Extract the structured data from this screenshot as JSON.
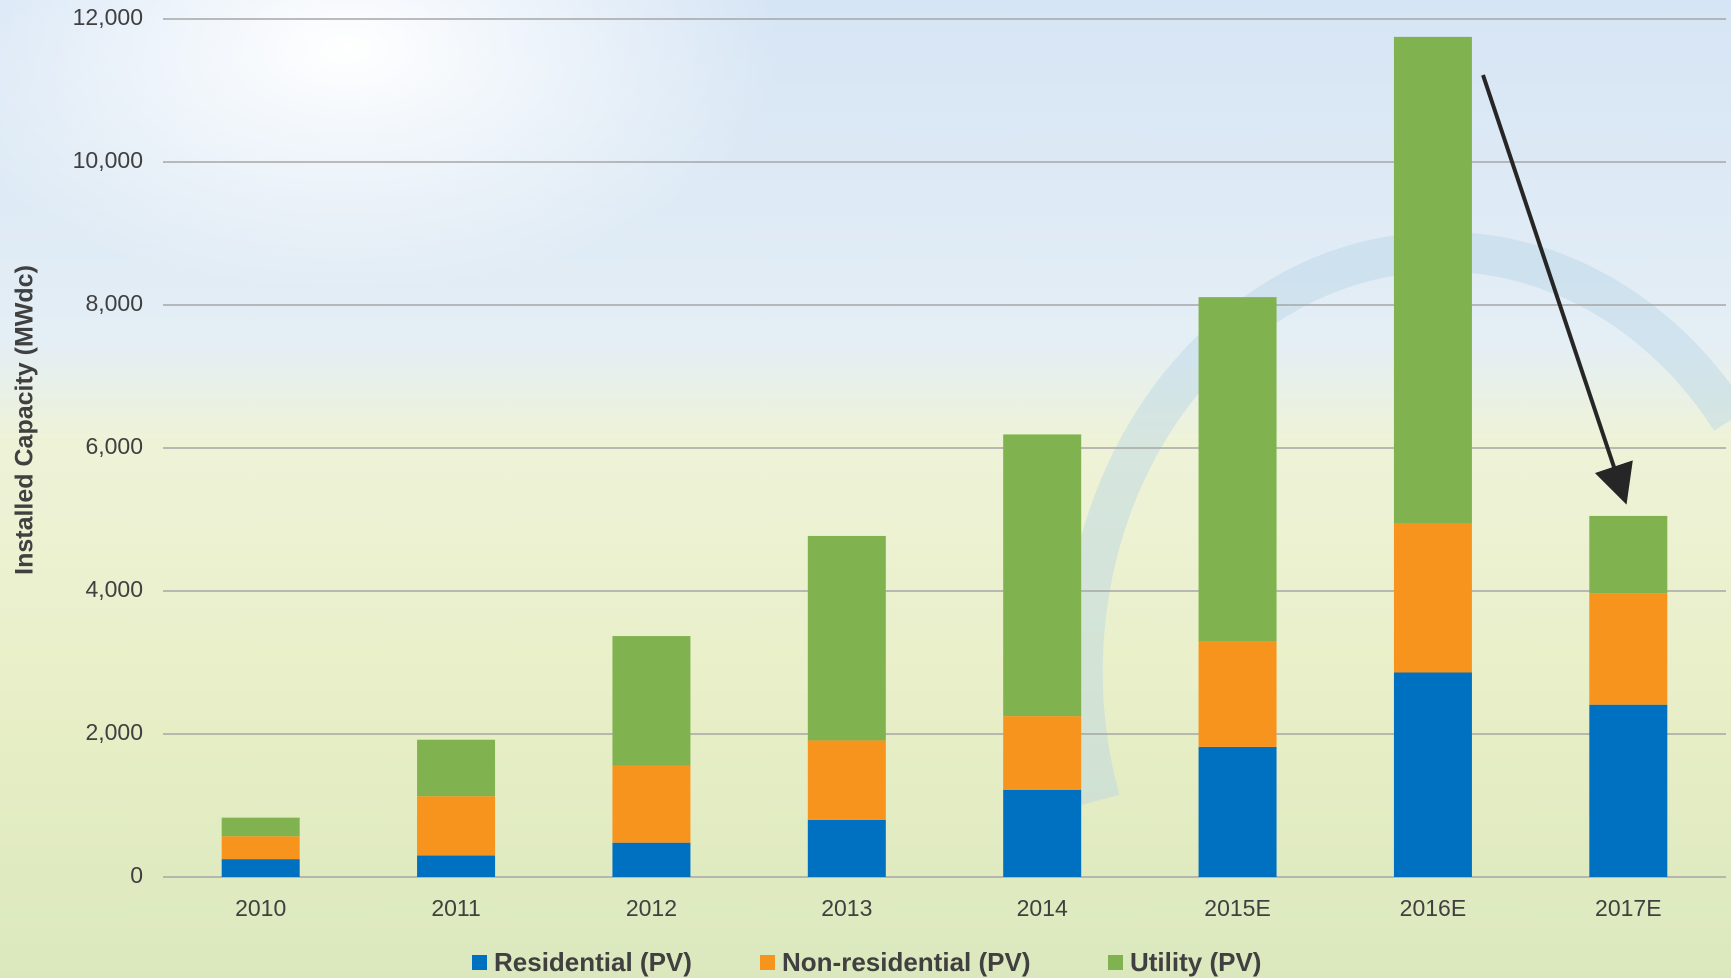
{
  "chart_data": {
    "type": "stacked-bar",
    "y_label": "Installed Capacity (MWdc)",
    "categories": [
      "2010",
      "2011",
      "2012",
      "2013",
      "2014",
      "2015E",
      "2016E",
      "2017E"
    ],
    "series": [
      {
        "name": "Residential (PV)",
        "color": "#0070c0",
        "values": [
          250,
          300,
          480,
          800,
          1220,
          1820,
          2860,
          2410
        ]
      },
      {
        "name": "Non-residential (PV)",
        "color": "#f7941d",
        "values": [
          320,
          830,
          1080,
          1110,
          1030,
          1470,
          2080,
          1560
        ]
      },
      {
        "name": "Utility (PV)",
        "color": "#80b350",
        "values": [
          260,
          790,
          1810,
          2860,
          3940,
          4820,
          6810,
          1080
        ]
      }
    ],
    "ylim": [
      0,
      12000
    ],
    "yticks": [
      0,
      {
        "value": 2000,
        "label": "2,000"
      },
      {
        "value": 4000,
        "label": "4,000"
      },
      {
        "value": 6000,
        "label": "6,000"
      },
      {
        "value": 8000,
        "label": "8,000"
      },
      {
        "value": 10000,
        "label": "10,000"
      },
      {
        "value": 12000,
        "label": "12,000"
      }
    ],
    "grid": true
  }
}
